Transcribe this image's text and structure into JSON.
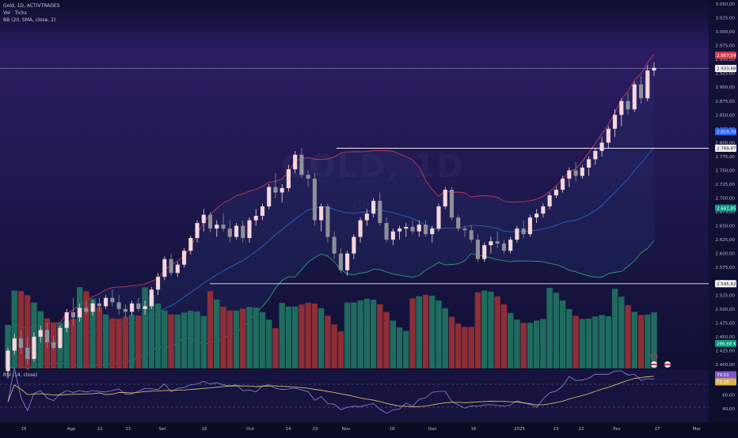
{
  "legend": {
    "symbol": "Gold, 1D, ACTIVTRADES",
    "volume": "Vol · Ticks",
    "bb": "BB (20, SMA, close, 2)",
    "rsi": "RSI (14, close)"
  },
  "watermark": {
    "main": "GOLD, 1D",
    "sub": "Gold"
  },
  "colors": {
    "background_top": "#251a57",
    "background_bottom": "#0a0c2a",
    "candle_up": "#f6d6dd",
    "candle_down": "#8f8f9a",
    "bb_upper": "#c23a5a",
    "bb_basis": "#2e62c4",
    "bb_lower": "#2c9b7c",
    "vol_up": "#1f6b5e",
    "vol_down": "#8e2e37",
    "rsi_line": "#8f86d8",
    "rsi_ma": "#d2b96a"
  },
  "price_axis": {
    "ticks": [
      "3.050,00",
      "3.025,00",
      "3.000,00",
      "2.975,00",
      "2.950,00",
      "2.925,00",
      "2.900,00",
      "2.875,00",
      "2.850,00",
      "2.825,00",
      "2.800,00",
      "2.775,00",
      "2.750,00",
      "2.725,00",
      "2.700,00",
      "2.675,00",
      "2.650,00",
      "2.625,00",
      "2.600,00",
      "2.575,00",
      "2.550,00",
      "2.525,00",
      "2.500,00",
      "2.475,00",
      "2.450,00",
      "2.425,00",
      "2.400,00"
    ],
    "badges": [
      {
        "text": "2.957,54",
        "price": 2957.54,
        "color": "#e0394a"
      },
      {
        "text": "2.933,68",
        "price": 2933.68,
        "color": "#f3f3f3"
      },
      {
        "text": "2.819,70",
        "price": 2819.7,
        "color": "#2962ff"
      },
      {
        "text": "2.789,87",
        "price": 2789.87,
        "color": "#f3f3f3"
      },
      {
        "text": "2.681,85",
        "price": 2681.85,
        "color": "#089981"
      },
      {
        "text": "2.545,62",
        "price": 2545.62,
        "color": "#f3f3f3"
      },
      {
        "text": "286,68 K",
        "price": 2438,
        "color": "#089981"
      }
    ]
  },
  "rsi_axis": {
    "ticks": [
      "60,00",
      "40,00"
    ],
    "badges": [
      {
        "text": "79,01",
        "value": 79.01,
        "color": "#7e57c2"
      },
      {
        "text": "72,25",
        "value": 72.25,
        "color": "#d9b44a"
      }
    ]
  },
  "time_axis": [
    "15",
    "Ago",
    "12",
    "21",
    "Set",
    "16",
    "Out",
    "14",
    "23",
    "Nov",
    "18",
    "Dez",
    "16",
    "2025",
    "13",
    "22",
    "Fev",
    "17",
    "Mar"
  ],
  "chart_data": {
    "type": "candlestick",
    "title": "Gold, 1D, ACTIVTRADES",
    "ylim": [
      2400,
      3050
    ],
    "horizontal_levels": [
      2933.68,
      2789.87,
      2545.62
    ],
    "candles": [
      [
        2388,
        2430,
        2375,
        2425
      ],
      [
        2425,
        2455,
        2418,
        2447
      ],
      [
        2447,
        2462,
        2420,
        2430
      ],
      [
        2430,
        2450,
        2400,
        2410
      ],
      [
        2410,
        2458,
        2405,
        2450
      ],
      [
        2450,
        2470,
        2440,
        2462
      ],
      [
        2462,
        2475,
        2430,
        2440
      ],
      [
        2440,
        2452,
        2426,
        2430
      ],
      [
        2430,
        2470,
        2428,
        2466
      ],
      [
        2466,
        2500,
        2458,
        2494
      ],
      [
        2494,
        2520,
        2470,
        2485
      ],
      [
        2485,
        2510,
        2477,
        2502
      ],
      [
        2502,
        2515,
        2490,
        2495
      ],
      [
        2495,
        2515,
        2488,
        2510
      ],
      [
        2510,
        2520,
        2495,
        2505
      ],
      [
        2505,
        2525,
        2500,
        2520
      ],
      [
        2520,
        2535,
        2505,
        2512
      ],
      [
        2512,
        2525,
        2490,
        2500
      ],
      [
        2500,
        2508,
        2485,
        2495
      ],
      [
        2495,
        2515,
        2488,
        2510
      ],
      [
        2510,
        2520,
        2495,
        2500
      ],
      [
        2500,
        2515,
        2490,
        2505
      ],
      [
        2505,
        2540,
        2500,
        2535
      ],
      [
        2535,
        2565,
        2525,
        2558
      ],
      [
        2558,
        2595,
        2552,
        2590
      ],
      [
        2590,
        2600,
        2560,
        2565
      ],
      [
        2565,
        2585,
        2558,
        2580
      ],
      [
        2580,
        2610,
        2575,
        2605
      ],
      [
        2605,
        2632,
        2598,
        2628
      ],
      [
        2628,
        2660,
        2620,
        2655
      ],
      [
        2655,
        2680,
        2640,
        2670
      ],
      [
        2670,
        2675,
        2638,
        2645
      ],
      [
        2645,
        2660,
        2630,
        2652
      ],
      [
        2652,
        2672,
        2640,
        2645
      ],
      [
        2645,
        2660,
        2620,
        2630
      ],
      [
        2630,
        2655,
        2625,
        2650
      ],
      [
        2650,
        2660,
        2620,
        2628
      ],
      [
        2628,
        2665,
        2620,
        2660
      ],
      [
        2660,
        2680,
        2650,
        2668
      ],
      [
        2668,
        2690,
        2660,
        2685
      ],
      [
        2685,
        2725,
        2680,
        2720
      ],
      [
        2720,
        2745,
        2700,
        2710
      ],
      [
        2710,
        2725,
        2692,
        2718
      ],
      [
        2718,
        2760,
        2712,
        2752
      ],
      [
        2752,
        2785,
        2745,
        2778
      ],
      [
        2778,
        2790,
        2735,
        2742
      ],
      [
        2742,
        2750,
        2720,
        2735
      ],
      [
        2735,
        2745,
        2650,
        2660
      ],
      [
        2660,
        2690,
        2640,
        2685
      ],
      [
        2685,
        2690,
        2620,
        2630
      ],
      [
        2630,
        2640,
        2590,
        2600
      ],
      [
        2600,
        2610,
        2565,
        2570
      ],
      [
        2570,
        2605,
        2560,
        2600
      ],
      [
        2600,
        2635,
        2590,
        2630
      ],
      [
        2630,
        2665,
        2620,
        2660
      ],
      [
        2660,
        2680,
        2650,
        2672
      ],
      [
        2672,
        2700,
        2665,
        2695
      ],
      [
        2695,
        2710,
        2650,
        2655
      ],
      [
        2655,
        2665,
        2620,
        2625
      ],
      [
        2625,
        2645,
        2615,
        2640
      ],
      [
        2640,
        2650,
        2625,
        2645
      ],
      [
        2645,
        2655,
        2630,
        2648
      ],
      [
        2648,
        2660,
        2635,
        2640
      ],
      [
        2640,
        2660,
        2630,
        2652
      ],
      [
        2652,
        2660,
        2630,
        2635
      ],
      [
        2635,
        2650,
        2620,
        2645
      ],
      [
        2645,
        2690,
        2640,
        2685
      ],
      [
        2685,
        2720,
        2680,
        2715
      ],
      [
        2715,
        2720,
        2660,
        2665
      ],
      [
        2665,
        2670,
        2640,
        2645
      ],
      [
        2645,
        2650,
        2630,
        2642
      ],
      [
        2642,
        2650,
        2620,
        2625
      ],
      [
        2625,
        2635,
        2585,
        2590
      ],
      [
        2590,
        2620,
        2585,
        2615
      ],
      [
        2615,
        2630,
        2600,
        2622
      ],
      [
        2622,
        2640,
        2610,
        2618
      ],
      [
        2618,
        2625,
        2600,
        2605
      ],
      [
        2605,
        2630,
        2600,
        2625
      ],
      [
        2625,
        2650,
        2620,
        2645
      ],
      [
        2645,
        2660,
        2628,
        2635
      ],
      [
        2635,
        2670,
        2630,
        2665
      ],
      [
        2665,
        2680,
        2655,
        2672
      ],
      [
        2672,
        2690,
        2665,
        2685
      ],
      [
        2685,
        2710,
        2680,
        2705
      ],
      [
        2705,
        2720,
        2700,
        2715
      ],
      [
        2715,
        2740,
        2710,
        2735
      ],
      [
        2735,
        2755,
        2720,
        2750
      ],
      [
        2750,
        2765,
        2730,
        2740
      ],
      [
        2740,
        2760,
        2735,
        2755
      ],
      [
        2755,
        2775,
        2740,
        2770
      ],
      [
        2770,
        2790,
        2760,
        2785
      ],
      [
        2785,
        2810,
        2775,
        2800
      ],
      [
        2800,
        2830,
        2790,
        2825
      ],
      [
        2825,
        2860,
        2810,
        2850
      ],
      [
        2850,
        2880,
        2830,
        2875
      ],
      [
        2875,
        2890,
        2850,
        2860
      ],
      [
        2860,
        2910,
        2855,
        2905
      ],
      [
        2905,
        2920,
        2870,
        2880
      ],
      [
        2880,
        2940,
        2875,
        2930
      ],
      [
        2930,
        2945,
        2920,
        2935
      ]
    ]
  }
}
